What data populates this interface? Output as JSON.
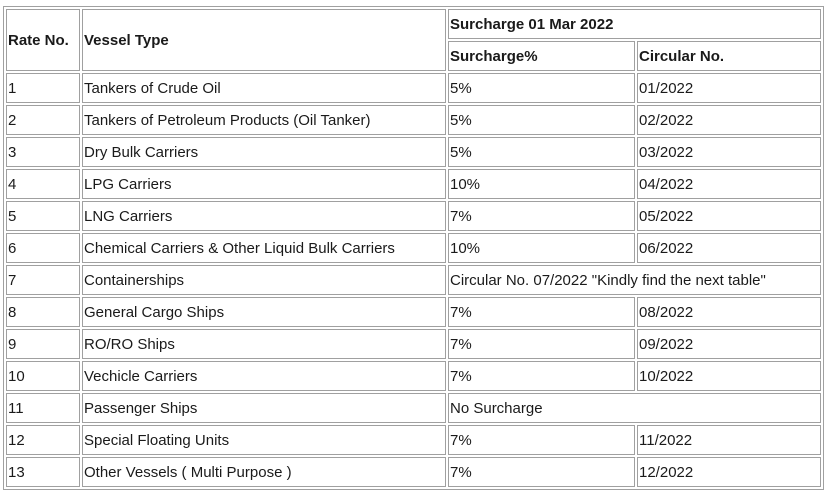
{
  "header": {
    "rate_no": "Rate No.",
    "vessel_type": "Vessel Type",
    "group": "Surcharge 01 Mar 2022",
    "surcharge": "Surcharge%",
    "circular": "Circular No."
  },
  "rows": [
    {
      "rate": "1",
      "vessel": "Tankers of Crude Oil",
      "surcharge": "5%",
      "circular": "01/2022"
    },
    {
      "rate": "2",
      "vessel": "Tankers of Petroleum Products (Oil Tanker)",
      "surcharge": "5%",
      "circular": "02/2022"
    },
    {
      "rate": "3",
      "vessel": "Dry Bulk Carriers",
      "surcharge": "5%",
      "circular": "03/2022"
    },
    {
      "rate": "4",
      "vessel": "LPG Carriers",
      "surcharge": "10%",
      "circular": "04/2022"
    },
    {
      "rate": "5",
      "vessel": "LNG Carriers",
      "surcharge": "7%",
      "circular": "05/2022"
    },
    {
      "rate": "6",
      "vessel": "Chemical Carriers & Other Liquid Bulk Carriers",
      "surcharge": "10%",
      "circular": "06/2022"
    },
    {
      "rate": "7",
      "vessel": "Containerships",
      "merged": "Circular No. 07/2022  \"Kindly find the next table\""
    },
    {
      "rate": "8",
      "vessel": "General Cargo Ships",
      "surcharge": "7%",
      "circular": "08/2022"
    },
    {
      "rate": "9",
      "vessel": "RO/RO Ships",
      "surcharge": "7%",
      "circular": "09/2022"
    },
    {
      "rate": "10",
      "vessel": "Vechicle Carriers",
      "surcharge": "7%",
      "circular": "10/2022"
    },
    {
      "rate": "11",
      "vessel": "Passenger Ships",
      "merged": "No Surcharge"
    },
    {
      "rate": "12",
      "vessel": "Special Floating Units",
      "surcharge": "7%",
      "circular": "11/2022"
    },
    {
      "rate": "13",
      "vessel": "Other Vessels ( Multi Purpose )",
      "surcharge": "7%",
      "circular": "12/2022"
    }
  ]
}
